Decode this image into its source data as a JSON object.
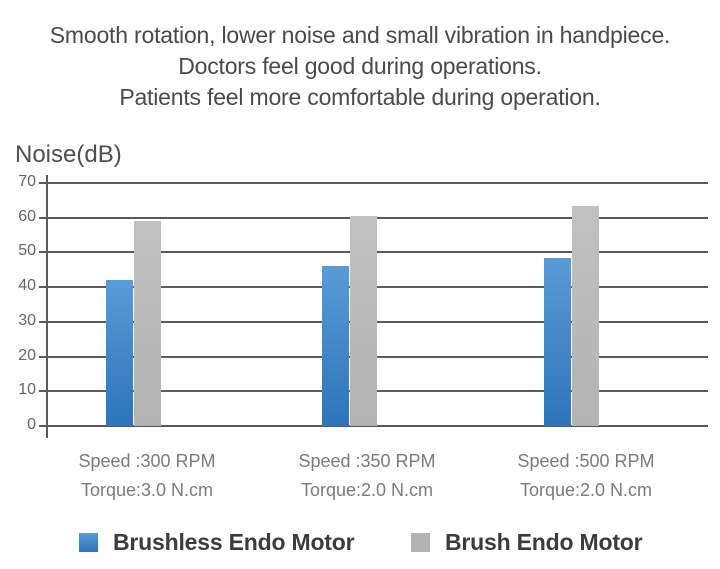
{
  "title_lines": [
    "Smooth rotation, lower noise and small vibration in handpiece.",
    "Doctors feel good during operations.",
    "Patients feel more comfortable during operation."
  ],
  "chart_data": {
    "type": "bar",
    "title": "",
    "ylabel": "Noise(dB)",
    "xlabel": "",
    "axis_label": "Noise(dB)",
    "ylim": [
      0,
      70
    ],
    "yticks": [
      0,
      10,
      20,
      30,
      40,
      50,
      60,
      70
    ],
    "grid": true,
    "legend_position": "bottom",
    "categories": [
      [
        "Speed :300 RPM",
        "Torque:3.0 N.cm"
      ],
      [
        "Speed :350 RPM",
        "Torque:2.0 N.cm"
      ],
      [
        "Speed :500 RPM",
        "Torque:2.0 N.cm"
      ]
    ],
    "series": [
      {
        "name": "Brushless Endo Motor",
        "color": "#2E74BA",
        "values": [
          42,
          46,
          48.5
        ]
      },
      {
        "name": "Brush Endo Motor",
        "color": "#B9B9B9",
        "values": [
          59,
          60.5,
          63.5
        ]
      }
    ]
  },
  "colors": {
    "background": "#ffffff",
    "grid": "#5a5a5a",
    "tick_label": "#666666",
    "title_text": "#4a4a4a",
    "axis_label": "#4f4f4f",
    "category_label": "#7b7b7b",
    "legend_text": "#3c3c3c",
    "blue_top": "#599BD7",
    "blue_bottom": "#2E74BA",
    "gray_top": "#C1C1C1",
    "gray_bottom": "#B3B3B3"
  }
}
